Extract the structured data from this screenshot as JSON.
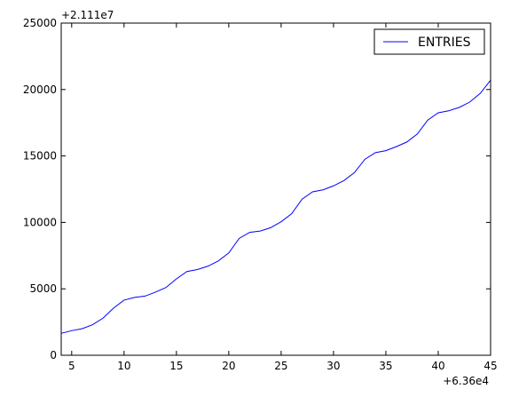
{
  "chart_data": {
    "type": "line",
    "title": "",
    "xlabel": "",
    "ylabel": "",
    "x_offset_label": "+6.36e4",
    "y_offset_label": "+2.111e7",
    "xlim": [
      4,
      45
    ],
    "ylim": [
      0,
      25000
    ],
    "x_ticks": [
      5,
      10,
      15,
      20,
      25,
      30,
      35,
      40,
      45
    ],
    "y_ticks": [
      0,
      5000,
      10000,
      15000,
      20000,
      25000
    ],
    "grid": false,
    "legend": "top-right",
    "series": [
      {
        "name": "ENTRIES",
        "color": "#0000ff",
        "x": [
          4,
          5,
          6,
          7,
          8,
          9,
          10,
          11,
          12,
          13,
          14,
          15,
          16,
          17,
          18,
          19,
          20,
          21,
          22,
          23,
          24,
          25,
          26,
          27,
          28,
          29,
          30,
          31,
          32,
          33,
          34,
          35,
          36,
          37,
          38,
          39,
          40,
          41,
          42,
          43,
          44,
          45
        ],
        "y": [
          1650,
          1850,
          2000,
          2300,
          2800,
          3550,
          4150,
          4350,
          4450,
          4750,
          5100,
          5750,
          6300,
          6450,
          6700,
          7100,
          7700,
          8800,
          9250,
          9350,
          9600,
          10050,
          10650,
          11750,
          12300,
          12450,
          12750,
          13150,
          13750,
          14750,
          15250,
          15400,
          15700,
          16050,
          16650,
          17700,
          18250,
          18400,
          18650,
          19050,
          19700,
          20700
        ]
      }
    ]
  }
}
